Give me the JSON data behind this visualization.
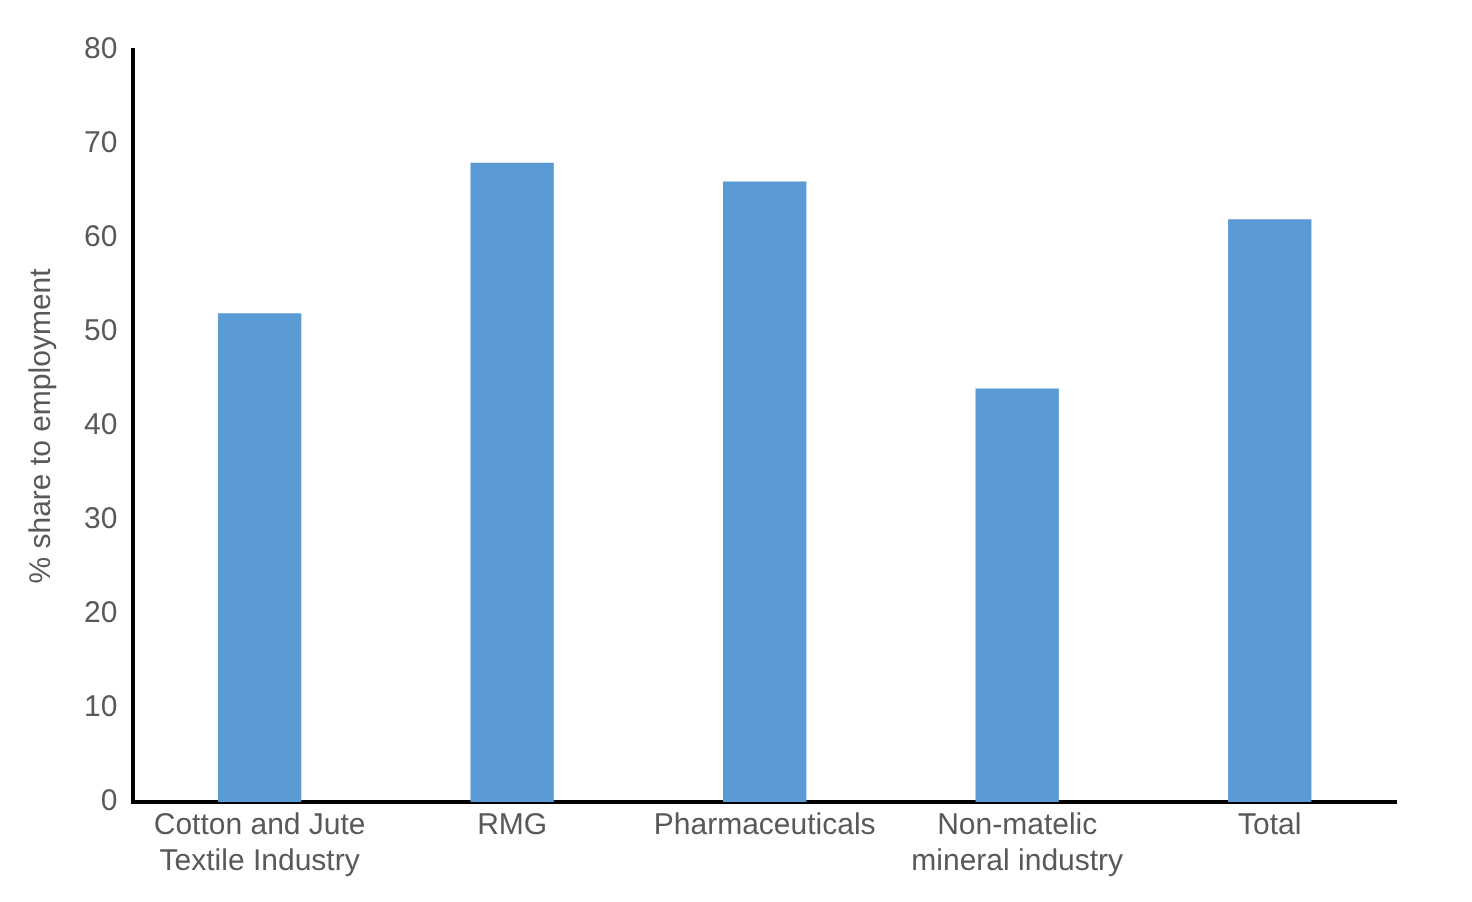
{
  "chart_data": {
    "type": "bar",
    "ylabel": "% share to employment",
    "categories": [
      "Cotton and Jute Textile Industry",
      "RMG",
      "Pharmaceuticals",
      "Non-matelic mineral industry",
      "Total"
    ],
    "values": [
      52,
      68,
      66,
      44,
      62
    ],
    "color": "#5b9bd5",
    "ylim": [
      0,
      80
    ],
    "yticks": [
      0,
      10,
      20,
      30,
      40,
      50,
      60,
      70,
      80
    ],
    "grid": false,
    "legend": false
  }
}
